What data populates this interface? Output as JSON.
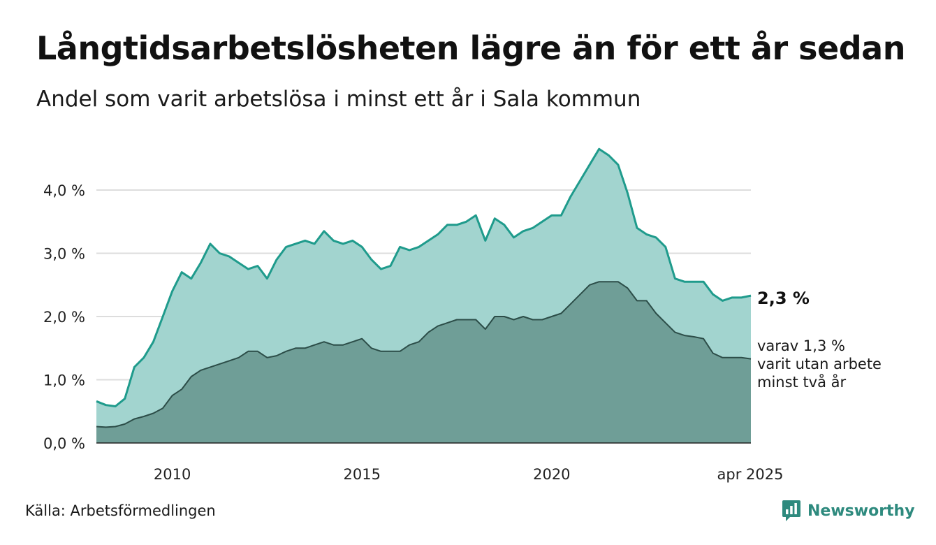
{
  "title": "Långtidsarbetslösheten lägre än för ett år sedan",
  "subtitle": "Andel som varit arbetslösa i minst ett år i Sala kommun",
  "source": "Källa: Arbetsförmedlingen",
  "brand": "Newsworthy",
  "colors": {
    "upper_line": "#1f9b8c",
    "upper_fill": "#a2d4cf",
    "lower_line": "#2c4d48",
    "lower_fill": "#6f9e97",
    "grid": "#dddddd",
    "axis": "#222222",
    "brand": "#2e8a7e"
  },
  "chart_data": {
    "type": "area",
    "ylim": [
      0,
      4.7
    ],
    "xlim": [
      2008.0,
      2025.25
    ],
    "y_ticks": [
      {
        "value": 0,
        "label": "0,0 %"
      },
      {
        "value": 1,
        "label": "1,0 %"
      },
      {
        "value": 2,
        "label": "2,0 %"
      },
      {
        "value": 3,
        "label": "3,0 %"
      },
      {
        "value": 4,
        "label": "4,0 %"
      }
    ],
    "x_ticks": [
      {
        "value": 2010,
        "label": "2010"
      },
      {
        "value": 2015,
        "label": "2015"
      },
      {
        "value": 2020,
        "label": "2020"
      },
      {
        "value": 2025.25,
        "label": "apr 2025"
      }
    ],
    "grid": true,
    "x": [
      2008.0,
      2008.25,
      2008.5,
      2008.75,
      2009.0,
      2009.25,
      2009.5,
      2009.75,
      2010.0,
      2010.25,
      2010.5,
      2010.75,
      2011.0,
      2011.25,
      2011.5,
      2011.75,
      2012.0,
      2012.25,
      2012.5,
      2012.75,
      2013.0,
      2013.25,
      2013.5,
      2013.75,
      2014.0,
      2014.25,
      2014.5,
      2014.75,
      2015.0,
      2015.25,
      2015.5,
      2015.75,
      2016.0,
      2016.25,
      2016.5,
      2016.75,
      2017.0,
      2017.25,
      2017.5,
      2017.75,
      2018.0,
      2018.25,
      2018.5,
      2018.75,
      2019.0,
      2019.25,
      2019.5,
      2019.75,
      2020.0,
      2020.25,
      2020.5,
      2020.75,
      2021.0,
      2021.25,
      2021.5,
      2021.75,
      2022.0,
      2022.25,
      2022.5,
      2022.75,
      2023.0,
      2023.25,
      2023.5,
      2023.75,
      2024.0,
      2024.25,
      2024.5,
      2024.75,
      2025.0,
      2025.25
    ],
    "series": [
      {
        "name": "",
        "end_label": "2,3 %",
        "values": [
          0.66,
          0.6,
          0.58,
          0.7,
          1.2,
          1.35,
          1.6,
          2.0,
          2.4,
          2.7,
          2.6,
          2.85,
          3.15,
          3.0,
          2.95,
          2.85,
          2.75,
          2.8,
          2.6,
          2.9,
          3.1,
          3.15,
          3.2,
          3.15,
          3.35,
          3.2,
          3.15,
          3.2,
          3.1,
          2.9,
          2.75,
          2.8,
          3.1,
          3.05,
          3.1,
          3.2,
          3.3,
          3.45,
          3.45,
          3.5,
          3.6,
          3.2,
          3.55,
          3.45,
          3.25,
          3.35,
          3.4,
          3.5,
          3.6,
          3.6,
          3.9,
          4.15,
          4.4,
          4.65,
          4.55,
          4.4,
          3.95,
          3.4,
          3.3,
          3.25,
          3.1,
          2.6,
          2.55,
          2.55,
          2.55,
          2.35,
          2.25,
          2.3,
          2.3,
          2.33
        ]
      },
      {
        "name": "varav 1,3 % varit utan arbete minst två år",
        "label_lines": [
          "varav 1,3 %",
          "varit utan arbete",
          "minst två år"
        ],
        "values": [
          0.26,
          0.25,
          0.26,
          0.3,
          0.38,
          0.42,
          0.47,
          0.55,
          0.75,
          0.85,
          1.05,
          1.15,
          1.2,
          1.25,
          1.3,
          1.35,
          1.45,
          1.45,
          1.35,
          1.38,
          1.45,
          1.5,
          1.5,
          1.55,
          1.6,
          1.55,
          1.55,
          1.6,
          1.65,
          1.5,
          1.45,
          1.45,
          1.45,
          1.55,
          1.6,
          1.75,
          1.85,
          1.9,
          1.95,
          1.95,
          1.95,
          1.8,
          2.0,
          2.0,
          1.95,
          2.0,
          1.95,
          1.95,
          2.0,
          2.05,
          2.2,
          2.35,
          2.5,
          2.55,
          2.55,
          2.55,
          2.45,
          2.25,
          2.25,
          2.05,
          1.9,
          1.75,
          1.7,
          1.68,
          1.65,
          1.42,
          1.35,
          1.35,
          1.35,
          1.33
        ]
      }
    ]
  }
}
